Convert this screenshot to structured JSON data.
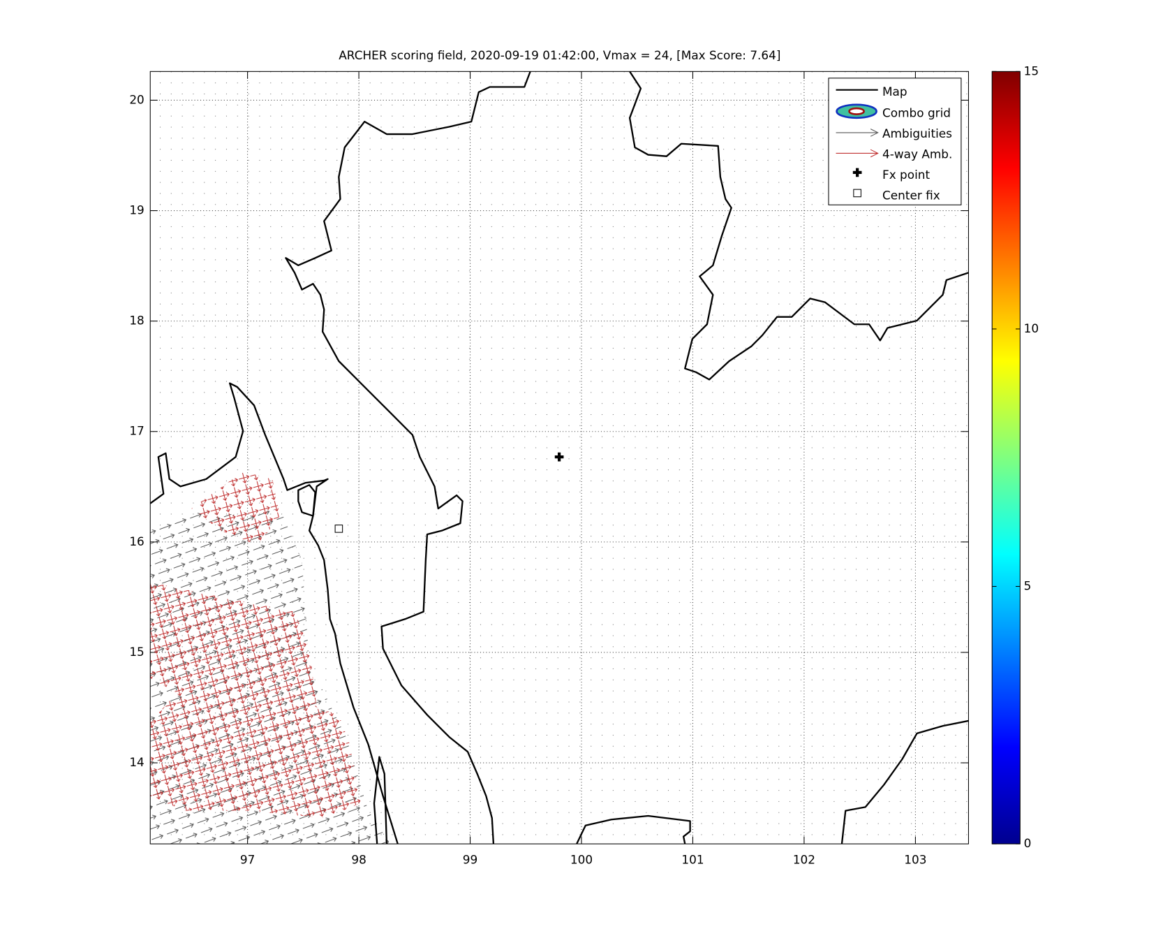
{
  "chart_data": {
    "type": "map",
    "title": "ARCHER scoring field, 2020-09-19 01:42:00, Vmax = 24, [Max Score: 7.64]",
    "xlim": [
      96.126,
      103.477
    ],
    "ylim": [
      13.266,
      20.26
    ],
    "xticks": [
      97,
      98,
      99,
      100,
      101,
      102,
      103
    ],
    "yticks": [
      14,
      15,
      16,
      17,
      18,
      19,
      20
    ],
    "grid": true,
    "legend_entries": [
      "Map",
      "Combo grid",
      "Ambiguities",
      "4-way Amb.",
      "Fx point",
      "Center fix"
    ],
    "fx_point": {
      "x": 99.8,
      "y": 16.77
    },
    "center_fix": {
      "x": 97.82,
      "y": 16.12
    },
    "colorbar": {
      "lim": [
        0,
        15
      ],
      "ticks": [
        0,
        5,
        10,
        15
      ]
    }
  }
}
